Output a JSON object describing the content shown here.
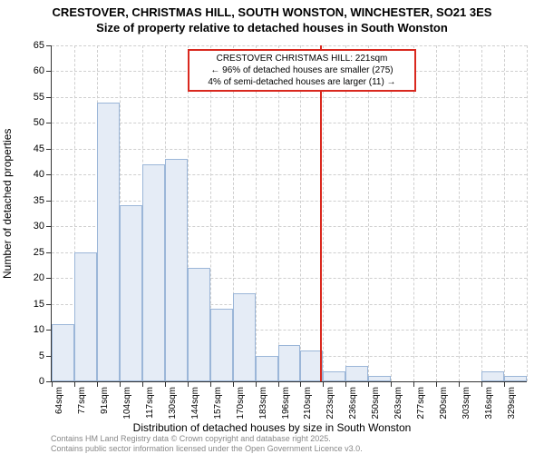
{
  "title_line1": "CRESTOVER, CHRISTMAS HILL, SOUTH WONSTON, WINCHESTER, SO21 3ES",
  "title_line2": "Size of property relative to detached houses in South Wonston",
  "y_axis_title": "Number of detached properties",
  "x_axis_title": "Distribution of detached houses by size in South Wonston",
  "footer_line1": "Contains HM Land Registry data © Crown copyright and database right 2025.",
  "footer_line2": "Contains public sector information licensed under the Open Government Licence v3.0.",
  "annotation": {
    "line1": "CRESTOVER CHRISTMAS HILL: 221sqm",
    "line2": "← 96% of detached houses are smaller (275)",
    "line3": "4% of semi-detached houses are larger (11) →"
  },
  "chart": {
    "type": "histogram",
    "ylim": [
      0,
      65
    ],
    "ytick_step": 5,
    "bar_fill": "#e5ecf6",
    "bar_border": "#9bb6d8",
    "grid_color": "#cfcfcf",
    "ref_line_color": "#d9281e",
    "ref_line_x": 221,
    "background_color": "#ffffff",
    "categories": [
      "64sqm",
      "77sqm",
      "91sqm",
      "104sqm",
      "117sqm",
      "130sqm",
      "144sqm",
      "157sqm",
      "170sqm",
      "183sqm",
      "196sqm",
      "210sqm",
      "223sqm",
      "236sqm",
      "250sqm",
      "263sqm",
      "277sqm",
      "290sqm",
      "303sqm",
      "316sqm",
      "329sqm"
    ],
    "values": [
      11,
      25,
      54,
      34,
      42,
      43,
      22,
      14,
      17,
      5,
      7,
      6,
      2,
      3,
      1,
      0,
      0,
      0,
      0,
      2,
      1
    ],
    "title_fontsize": 13,
    "label_fontsize": 11,
    "tick_fontsize": 10
  }
}
